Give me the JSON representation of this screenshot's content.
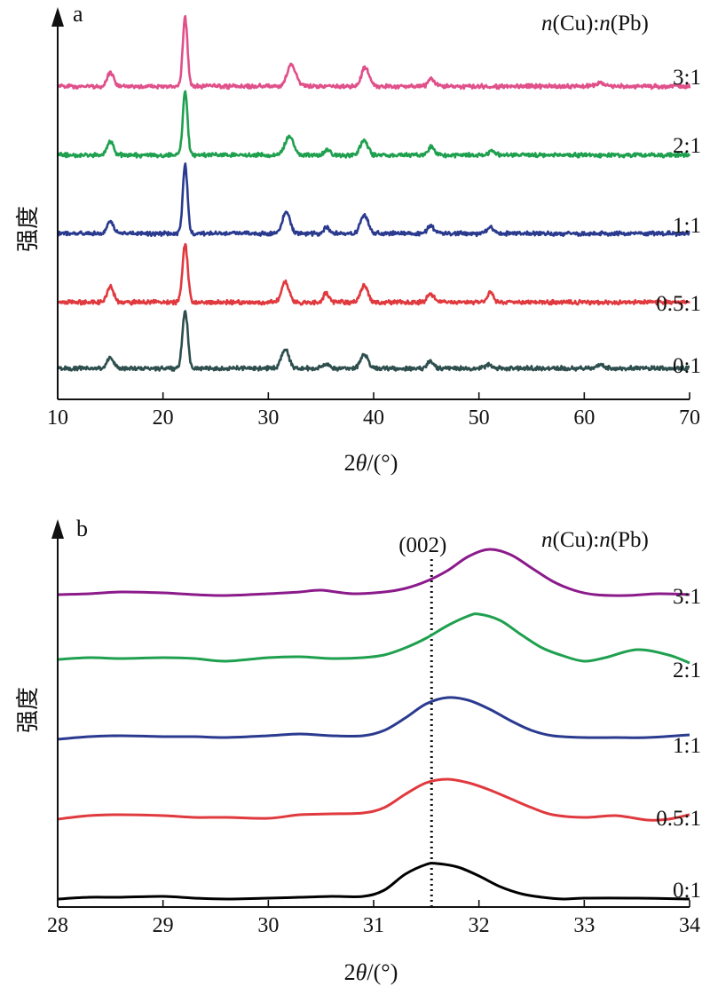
{
  "figure": {
    "panels": [
      {
        "letter": "a",
        "legend_title": {
          "n1": "n",
          "el1": "(Cu)",
          "sep": ":",
          "n2": "n",
          "el2": "(Pb)"
        },
        "xlabel": {
          "prefix": "2",
          "theta": "θ",
          "unit": "/(°)"
        },
        "ylabel": "强度"
      },
      {
        "letter": "b",
        "legend_title": {
          "n1": "n",
          "el1": "(Cu)",
          "sep": ":",
          "n2": "n",
          "el2": "(Pb)"
        },
        "xlabel": {
          "prefix": "2",
          "theta": "θ",
          "unit": "/(°)"
        },
        "ylabel": "强度",
        "reference_label": "(002)"
      }
    ]
  },
  "chart_data": [
    {
      "type": "line",
      "panel": "a",
      "x_unit": "2θ/(°)",
      "xlim": [
        10,
        70
      ],
      "xticks": [
        10,
        20,
        30,
        40,
        50,
        60,
        70
      ],
      "xticklabels": [
        "10",
        "20",
        "30",
        "40",
        "50",
        "60",
        "70"
      ],
      "ylabel": "强度",
      "legend_title": "n(Cu):n(Pb)",
      "grid": false,
      "y_scale": "arbitrary intensity, offset stacked",
      "noise_amplitude": 1.2,
      "series": [
        {
          "name": "0:1",
          "color": "#2f4f4f",
          "baseline": 0,
          "peaks": [
            [
              15.0,
              8,
              0.3
            ],
            [
              22.1,
              42,
              0.25
            ],
            [
              31.6,
              14,
              0.35
            ],
            [
              35.5,
              3,
              0.3
            ],
            [
              39.1,
              10,
              0.35
            ],
            [
              45.4,
              6,
              0.25
            ],
            [
              50.9,
              3,
              0.3
            ],
            [
              61.5,
              3,
              0.3
            ]
          ]
        },
        {
          "name": "0.5:1",
          "color": "#e0393e",
          "baseline": 48,
          "peaks": [
            [
              15.0,
              11,
              0.3
            ],
            [
              22.1,
              42,
              0.25
            ],
            [
              31.6,
              15,
              0.35
            ],
            [
              35.5,
              7,
              0.25
            ],
            [
              39.1,
              12,
              0.35
            ],
            [
              45.4,
              6,
              0.3
            ],
            [
              51.1,
              8,
              0.25
            ]
          ]
        },
        {
          "name": "1:1",
          "color": "#2a3a8f",
          "baseline": 98,
          "peaks": [
            [
              15.0,
              9,
              0.3
            ],
            [
              22.1,
              50,
              0.22
            ],
            [
              31.7,
              16,
              0.35
            ],
            [
              35.5,
              5,
              0.25
            ],
            [
              39.1,
              14,
              0.35
            ],
            [
              45.4,
              6,
              0.3
            ],
            [
              51.1,
              5,
              0.3
            ]
          ]
        },
        {
          "name": "2:1",
          "color": "#1fa04f",
          "baseline": 155,
          "peaks": [
            [
              15.0,
              10,
              0.3
            ],
            [
              22.1,
              46,
              0.22
            ],
            [
              32.0,
              14,
              0.4
            ],
            [
              35.6,
              4,
              0.3
            ],
            [
              39.1,
              11,
              0.35
            ],
            [
              45.5,
              6,
              0.3
            ],
            [
              51.2,
              3,
              0.3
            ]
          ]
        },
        {
          "name": "3:1",
          "color": "#e0508a",
          "baseline": 205,
          "peaks": [
            [
              15.0,
              10,
              0.3
            ],
            [
              22.1,
              50,
              0.22
            ],
            [
              32.2,
              16,
              0.4
            ],
            [
              39.2,
              14,
              0.35
            ],
            [
              45.5,
              5,
              0.3
            ],
            [
              61.5,
              3,
              0.3
            ]
          ]
        }
      ]
    },
    {
      "type": "line",
      "panel": "b",
      "x_unit": "2θ/(°)",
      "xlim": [
        28,
        34
      ],
      "xticks": [
        28,
        29,
        30,
        31,
        32,
        33,
        34
      ],
      "xticklabels": [
        "28",
        "29",
        "30",
        "31",
        "32",
        "33",
        "34"
      ],
      "ylabel": "强度",
      "legend_title": "n(Cu):n(Pb)",
      "grid": false,
      "y_scale": "arbitrary intensity, offset stacked",
      "reference_line": {
        "label": "(002)",
        "x": 31.55,
        "style": "dotted"
      },
      "series": [
        {
          "name": "0:1",
          "color": "#000000",
          "points": [
            [
              28,
              2
            ],
            [
              28.3,
              4
            ],
            [
              28.6,
              4
            ],
            [
              29.0,
              5
            ],
            [
              29.3,
              3
            ],
            [
              29.6,
              2
            ],
            [
              30.0,
              3
            ],
            [
              30.3,
              4
            ],
            [
              30.6,
              5
            ],
            [
              30.9,
              5
            ],
            [
              31.1,
              12
            ],
            [
              31.3,
              30
            ],
            [
              31.5,
              41
            ],
            [
              31.6,
              42
            ],
            [
              31.8,
              38
            ],
            [
              32.0,
              28
            ],
            [
              32.2,
              16
            ],
            [
              32.4,
              8
            ],
            [
              32.6,
              4
            ],
            [
              32.8,
              2
            ],
            [
              33.0,
              3
            ],
            [
              33.5,
              3
            ],
            [
              34.0,
              2
            ]
          ]
        },
        {
          "name": "0.5:1",
          "color": "#e0393e",
          "points": [
            [
              28,
              92
            ],
            [
              28.3,
              96
            ],
            [
              28.6,
              97
            ],
            [
              29.0,
              96
            ],
            [
              29.3,
              94
            ],
            [
              29.6,
              94
            ],
            [
              30.0,
              93
            ],
            [
              30.3,
              97
            ],
            [
              30.6,
              98
            ],
            [
              30.9,
              99
            ],
            [
              31.1,
              105
            ],
            [
              31.3,
              120
            ],
            [
              31.5,
              133
            ],
            [
              31.7,
              137
            ],
            [
              31.9,
              133
            ],
            [
              32.1,
              125
            ],
            [
              32.3,
              115
            ],
            [
              32.5,
              105
            ],
            [
              32.7,
              97
            ],
            [
              33.0,
              94
            ],
            [
              33.3,
              96
            ],
            [
              33.6,
              91
            ],
            [
              33.8,
              92
            ],
            [
              34.0,
              97
            ]
          ]
        },
        {
          "name": "1:1",
          "color": "#2a3a8f",
          "points": [
            [
              28,
              182
            ],
            [
              28.3,
              185
            ],
            [
              28.6,
              186
            ],
            [
              29.0,
              185
            ],
            [
              29.3,
              185
            ],
            [
              29.6,
              184
            ],
            [
              30.0,
              186
            ],
            [
              30.3,
              188
            ],
            [
              30.6,
              186
            ],
            [
              30.9,
              186
            ],
            [
              31.1,
              192
            ],
            [
              31.3,
              206
            ],
            [
              31.5,
              222
            ],
            [
              31.7,
              229
            ],
            [
              31.9,
              226
            ],
            [
              32.1,
              216
            ],
            [
              32.3,
              203
            ],
            [
              32.5,
              192
            ],
            [
              32.7,
              186
            ],
            [
              33.0,
              184
            ],
            [
              33.3,
              184
            ],
            [
              33.6,
              184
            ],
            [
              34.0,
              187
            ]
          ]
        },
        {
          "name": "2:1",
          "color": "#1fa04f",
          "points": [
            [
              28,
              272
            ],
            [
              28.3,
              274
            ],
            [
              28.6,
              273
            ],
            [
              29.0,
              274
            ],
            [
              29.3,
              273
            ],
            [
              29.6,
              270
            ],
            [
              30.0,
              274
            ],
            [
              30.3,
              275
            ],
            [
              30.6,
              273
            ],
            [
              30.9,
              274
            ],
            [
              31.1,
              277
            ],
            [
              31.3,
              285
            ],
            [
              31.5,
              296
            ],
            [
              31.7,
              310
            ],
            [
              31.9,
              321
            ],
            [
              32.0,
              323
            ],
            [
              32.2,
              316
            ],
            [
              32.4,
              300
            ],
            [
              32.6,
              285
            ],
            [
              32.8,
              276
            ],
            [
              33.0,
              270
            ],
            [
              33.2,
              274
            ],
            [
              33.5,
              283
            ],
            [
              33.8,
              277
            ],
            [
              34.0,
              268
            ]
          ]
        },
        {
          "name": "3:1",
          "color": "#8b1a8b",
          "points": [
            [
              28,
              345
            ],
            [
              28.3,
              346
            ],
            [
              28.6,
              348
            ],
            [
              29.0,
              347
            ],
            [
              29.3,
              345
            ],
            [
              29.6,
              344
            ],
            [
              30.0,
              346
            ],
            [
              30.3,
              348
            ],
            [
              30.5,
              350
            ],
            [
              30.8,
              346
            ],
            [
              31.1,
              348
            ],
            [
              31.3,
              352
            ],
            [
              31.5,
              360
            ],
            [
              31.7,
              372
            ],
            [
              31.9,
              388
            ],
            [
              32.1,
              396
            ],
            [
              32.3,
              390
            ],
            [
              32.5,
              375
            ],
            [
              32.7,
              360
            ],
            [
              32.9,
              350
            ],
            [
              33.1,
              345
            ],
            [
              33.4,
              344
            ],
            [
              33.7,
              346
            ],
            [
              34.0,
              345
            ]
          ]
        }
      ]
    }
  ]
}
